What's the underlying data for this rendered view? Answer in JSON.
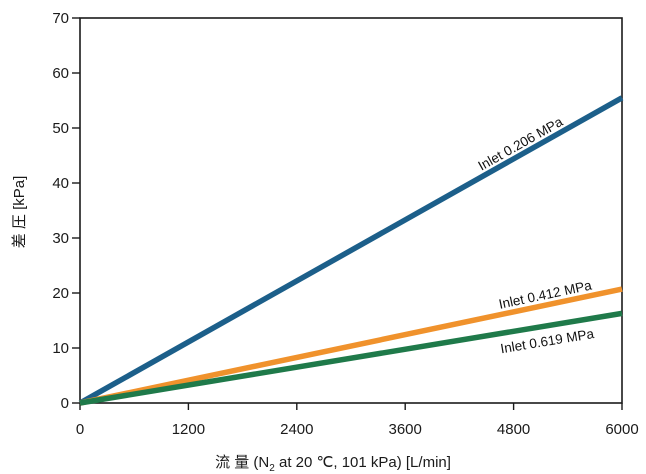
{
  "chart_data": {
    "type": "line",
    "xlabel": {
      "prefix": "流 量 (N",
      "subscript": "2",
      "suffix": " at 20 ℃, 101 kPa)  [L/min]"
    },
    "ylabel": "差 圧 [kPa]",
    "xlim": [
      0,
      6000
    ],
    "ylim": [
      0,
      70
    ],
    "x_ticks": [
      0,
      1200,
      2400,
      3600,
      4800,
      6000
    ],
    "y_ticks": [
      0,
      10,
      20,
      30,
      40,
      50,
      60,
      70
    ],
    "grid": false,
    "series": [
      {
        "name": "Inlet 0.206 MPa",
        "color": "#1c5f8a",
        "x": [
          0,
          6000
        ],
        "y": [
          0,
          55.5
        ]
      },
      {
        "name": "Inlet 0.412 MPa",
        "color": "#f0922c",
        "x": [
          0,
          6000
        ],
        "y": [
          0,
          20.7
        ]
      },
      {
        "name": "Inlet 0.619 MPa",
        "color": "#1f7a4a",
        "x": [
          0,
          6000
        ],
        "y": [
          0,
          16.3
        ]
      }
    ]
  }
}
